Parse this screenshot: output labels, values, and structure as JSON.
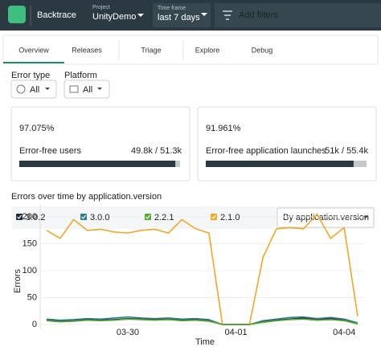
{
  "header": {
    "product": "Backtrace",
    "project_label": "Project",
    "project": "UnityDemo",
    "timeframe_label": "Time frame",
    "timeframe": "last 7 days",
    "filter_placeholder": "Add filters"
  },
  "tabs": [
    "Overview",
    "Releases",
    "Triage",
    "Explore",
    "Debug"
  ],
  "filters": {
    "error_type_label": "Error type",
    "error_type": "All",
    "platform_label": "Platform",
    "platform": "All"
  },
  "cards": [
    {
      "value": 97.075,
      "value_label": "97.075%",
      "label": "Error-free users",
      "ratio": "49.8k / 51.3k"
    },
    {
      "value": 91.961,
      "value_label": "91.961%",
      "label": "Error-free application launches",
      "ratio": "51k / 55.4k"
    }
  ],
  "chart_data": {
    "type": "line",
    "title": "Errors over time by application.version",
    "group_by": "By application.version",
    "y_label": "Errors",
    "x_label": "Time",
    "categories": [
      null,
      null,
      null,
      null,
      null,
      null,
      "03-30",
      null,
      null,
      null,
      null,
      null,
      null,
      null,
      "04-01",
      null,
      null,
      null,
      null,
      null,
      null,
      null,
      "04-04",
      null
    ],
    "series": [
      {
        "name": "3.0.2",
        "color": "#1f2d3d",
        "values": [
          8,
          6,
          7,
          9,
          8,
          9,
          11,
          10,
          9,
          10,
          8,
          9,
          7,
          0,
          0,
          0,
          5,
          8,
          10,
          12,
          9,
          11,
          8,
          2
        ]
      },
      {
        "name": "3.0.0",
        "color": "#2e7d86",
        "values": [
          10,
          8,
          9,
          11,
          10,
          12,
          14,
          12,
          11,
          12,
          10,
          11,
          9,
          0,
          0,
          0,
          7,
          10,
          13,
          14,
          11,
          13,
          10,
          3
        ]
      },
      {
        "name": "2.2.1",
        "color": "#5aa832",
        "values": [
          7,
          5,
          6,
          8,
          7,
          8,
          10,
          9,
          8,
          9,
          7,
          8,
          6,
          0,
          0,
          0,
          4,
          7,
          9,
          10,
          8,
          9,
          7,
          1
        ]
      },
      {
        "name": "2.1.0",
        "color": "#f5a623",
        "values": [
          175,
          160,
          195,
          175,
          177,
          172,
          170,
          175,
          177,
          170,
          195,
          178,
          170,
          0,
          0,
          0,
          125,
          178,
          180,
          178,
          205,
          160,
          180,
          15
        ]
      }
    ],
    "ylim": [
      0,
      212
    ],
    "yticks": [
      0,
      50,
      100,
      150,
      200
    ]
  }
}
